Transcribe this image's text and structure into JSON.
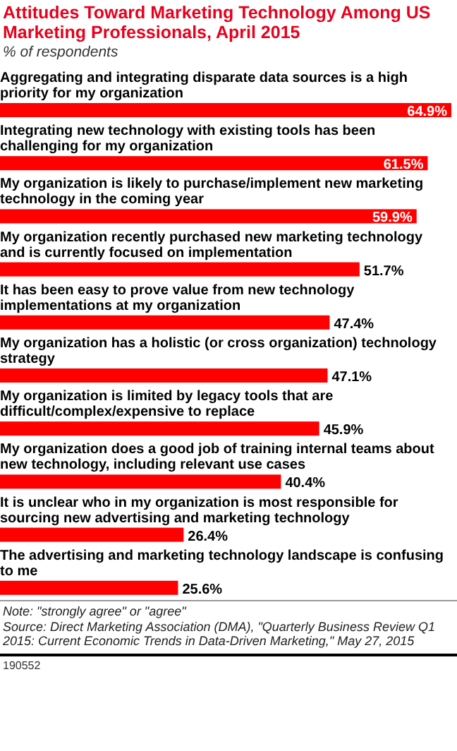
{
  "chart_data": {
    "type": "bar",
    "orientation": "horizontal",
    "title": "Attitudes Toward Marketing Technology Among US Marketing Professionals, April 2015",
    "subtitle": "% of respondents",
    "categories": [
      "Aggregating and integrating disparate data sources is a high priority for my organization",
      "Integrating new technology with existing tools has been challenging for my organization",
      "My organization is likely to purchase/implement new marketing technology in the coming year",
      "My organization recently purchased new marketing technology and is currently focused on implementation",
      "It has been easy to prove value from new technology implementations at my organization",
      "My organization has a holistic (or cross organization) technology strategy",
      "My organization is limited by legacy tools that are difficult/complex/expensive to replace",
      "My organization does a good job of training internal teams about new technology, including relevant use cases",
      "It is unclear who in my organization is most responsible for sourcing new advertising and marketing technology",
      "The advertising and marketing technology landscape is confusing to me"
    ],
    "values": [
      64.9,
      61.5,
      59.9,
      51.7,
      47.4,
      47.1,
      45.9,
      40.4,
      26.4,
      25.6
    ],
    "value_labels": [
      "64.9%",
      "61.5%",
      "59.9%",
      "51.7%",
      "47.4%",
      "47.1%",
      "45.9%",
      "40.4%",
      "26.4%",
      "25.6%"
    ],
    "color": "#ff0000",
    "annotations": [
      "Note: \"strongly agree\" or \"agree\"",
      "Source: Direct Marketing Association (DMA), \"Quarterly Business Review Q1 2015: Current Economic Trends in Data-Driven Marketing,\" May 27, 2015",
      "190552"
    ]
  }
}
